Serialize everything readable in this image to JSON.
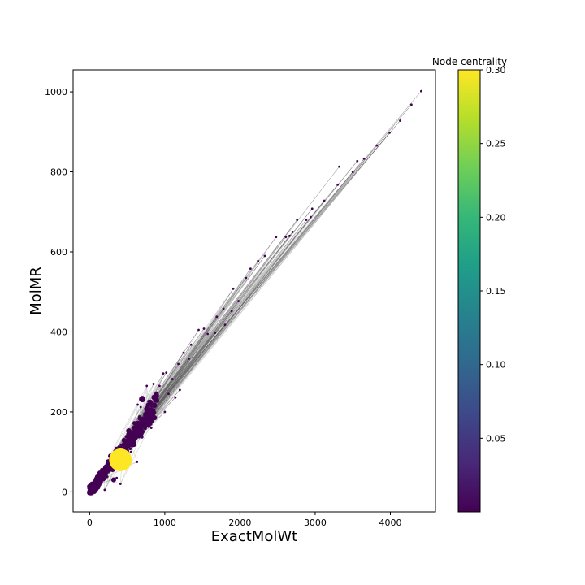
{
  "chart_data": {
    "type": "scatter",
    "title": "",
    "xlabel": "ExactMolWt",
    "ylabel": "MolMR",
    "xlim": [
      -220,
      4600
    ],
    "ylim": [
      -50,
      1055
    ],
    "x_ticks": [
      0,
      1000,
      2000,
      3000,
      4000
    ],
    "y_ticks": [
      0,
      200,
      400,
      600,
      800,
      1000
    ],
    "x_tick_labels": [
      "0",
      "1000",
      "2000",
      "3000",
      "4000"
    ],
    "y_tick_labels": [
      "0",
      "200",
      "400",
      "600",
      "800",
      "1000"
    ],
    "grid": false,
    "colorbar": {
      "title": "Node centrality",
      "range": [
        0.0,
        0.3
      ],
      "ticks": [
        0.05,
        0.1,
        0.15,
        0.2,
        0.25,
        0.3
      ],
      "tick_labels": [
        "0.05",
        "0.10",
        "0.15",
        "0.20",
        "0.25",
        "0.30"
      ],
      "colormap": "viridis",
      "colors": [
        "#440154",
        "#482878",
        "#3e4989",
        "#31688e",
        "#26828e",
        "#1f9e89",
        "#35b779",
        "#6ece58",
        "#b5de2b",
        "#fde725"
      ]
    },
    "edge_color": "#555555",
    "hub_nodes": [
      {
        "x": 410,
        "y": 80,
        "centrality": 0.3,
        "size": 14
      },
      {
        "x": 700,
        "y": 232,
        "centrality": 0.01,
        "size": 4
      },
      {
        "x": 320,
        "y": 30,
        "centrality": 0.01,
        "size": 3
      },
      {
        "x": 80,
        "y": 10,
        "centrality": 0.01,
        "size": 3
      }
    ],
    "outlier_nodes": [
      {
        "x": 4410,
        "y": 1002
      },
      {
        "x": 4280,
        "y": 968
      },
      {
        "x": 4130,
        "y": 928
      },
      {
        "x": 3990,
        "y": 898
      },
      {
        "x": 3820,
        "y": 866
      },
      {
        "x": 3650,
        "y": 833
      },
      {
        "x": 3560,
        "y": 827
      },
      {
        "x": 3500,
        "y": 800
      },
      {
        "x": 3320,
        "y": 813
      },
      {
        "x": 3300,
        "y": 768
      },
      {
        "x": 3120,
        "y": 728
      },
      {
        "x": 2960,
        "y": 708
      },
      {
        "x": 2940,
        "y": 687
      },
      {
        "x": 2880,
        "y": 680
      },
      {
        "x": 2760,
        "y": 680
      },
      {
        "x": 2700,
        "y": 650
      },
      {
        "x": 2660,
        "y": 640
      },
      {
        "x": 2610,
        "y": 637
      },
      {
        "x": 2480,
        "y": 637
      },
      {
        "x": 2330,
        "y": 590
      },
      {
        "x": 2240,
        "y": 577
      },
      {
        "x": 2140,
        "y": 558
      },
      {
        "x": 2080,
        "y": 535
      },
      {
        "x": 1910,
        "y": 508
      },
      {
        "x": 1980,
        "y": 477
      },
      {
        "x": 1780,
        "y": 458
      },
      {
        "x": 1890,
        "y": 452
      },
      {
        "x": 1690,
        "y": 438
      },
      {
        "x": 1800,
        "y": 418
      },
      {
        "x": 1520,
        "y": 408
      },
      {
        "x": 1450,
        "y": 405
      },
      {
        "x": 1670,
        "y": 398
      },
      {
        "x": 1570,
        "y": 395
      },
      {
        "x": 1350,
        "y": 368
      },
      {
        "x": 1250,
        "y": 348
      },
      {
        "x": 1320,
        "y": 333
      },
      {
        "x": 1180,
        "y": 320
      },
      {
        "x": 1020,
        "y": 298
      },
      {
        "x": 980,
        "y": 296
      },
      {
        "x": 1100,
        "y": 282
      },
      {
        "x": 850,
        "y": 270
      },
      {
        "x": 930,
        "y": 265
      },
      {
        "x": 760,
        "y": 265
      },
      {
        "x": 1200,
        "y": 255
      },
      {
        "x": 1050,
        "y": 245
      },
      {
        "x": 680,
        "y": 212
      },
      {
        "x": 1140,
        "y": 236
      },
      {
        "x": 1000,
        "y": 200
      },
      {
        "x": 640,
        "y": 218
      },
      {
        "x": 820,
        "y": 160
      },
      {
        "x": 620,
        "y": 140
      },
      {
        "x": 550,
        "y": 100
      },
      {
        "x": 630,
        "y": 75
      },
      {
        "x": 410,
        "y": 20
      },
      {
        "x": 360,
        "y": 35
      },
      {
        "x": 200,
        "y": 5
      }
    ]
  }
}
